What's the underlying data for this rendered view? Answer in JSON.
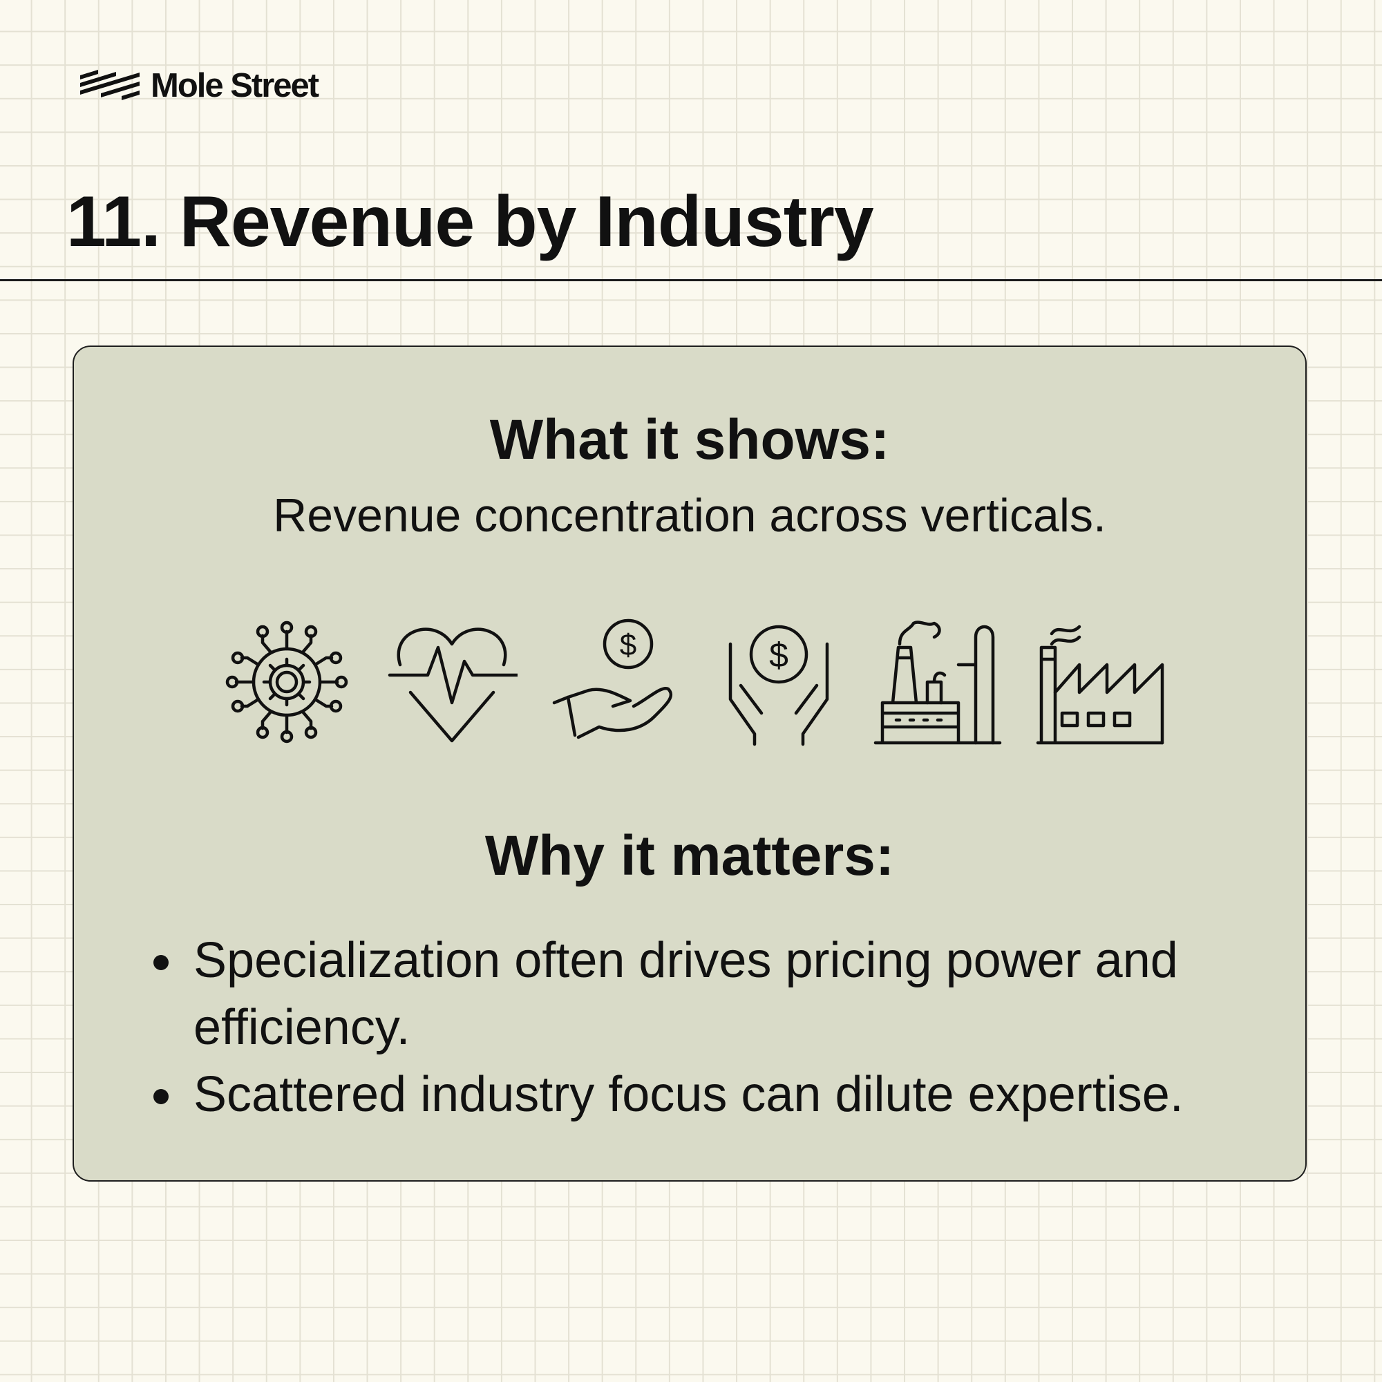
{
  "brand": {
    "name": "Mole Street"
  },
  "header": {
    "title": "11. Revenue by Industry"
  },
  "card": {
    "what_heading": "What it shows:",
    "what_text": "Revenue concentration across verticals.",
    "icons": [
      "technology-gear-network-icon",
      "healthcare-heartbeat-icon",
      "finance-hand-coin-icon",
      "insurance-hands-coin-icon",
      "energy-refinery-icon",
      "manufacturing-factory-icon"
    ],
    "why_heading": "Why it matters:",
    "bullets": [
      "Specialization often drives pricing power and efficiency.",
      "Scattered industry focus can dilute expertise."
    ]
  },
  "colors": {
    "background": "#fbf9ef",
    "card": "#d9dbc8",
    "text": "#111111"
  }
}
